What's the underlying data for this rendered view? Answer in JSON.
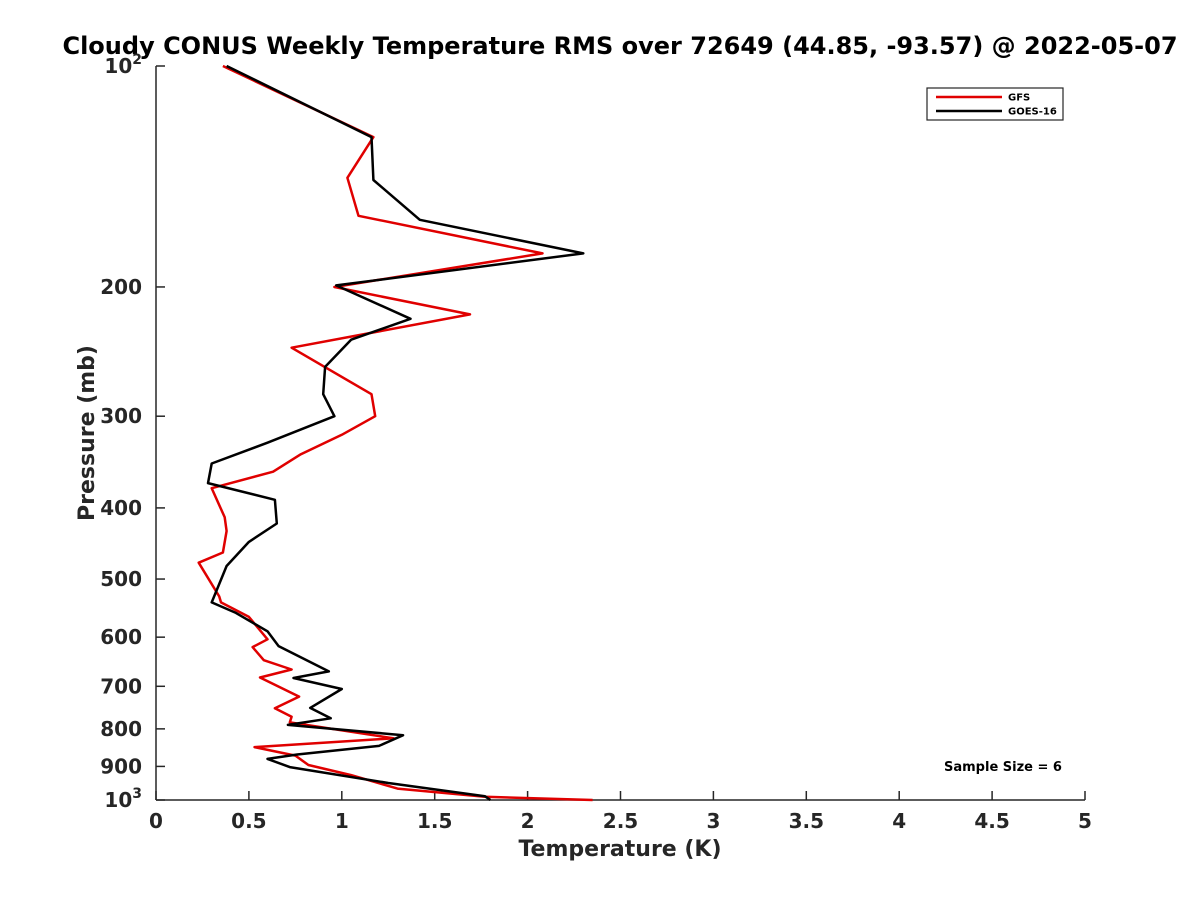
{
  "chart_data": {
    "type": "line",
    "title": "Cloudy CONUS Weekly Temperature RMS over 72649 (44.85, -93.57) @ 2022-05-07",
    "xlabel": "Temperature (K)",
    "ylabel": "Pressure (mb)",
    "xlim": [
      0,
      5
    ],
    "ylim": [
      100,
      1000
    ],
    "y_scale": "log",
    "y_reversed": true,
    "x_ticks": [
      "0",
      "0.5",
      "1",
      "1.5",
      "2",
      "2.5",
      "3",
      "3.5",
      "4",
      "4.5",
      "5"
    ],
    "y_ticks": [
      {
        "value": 100,
        "base": "10",
        "exp": "2"
      },
      {
        "value": 200,
        "label": "200"
      },
      {
        "value": 300,
        "label": "300"
      },
      {
        "value": 400,
        "label": "400"
      },
      {
        "value": 500,
        "label": "500"
      },
      {
        "value": 600,
        "label": "600"
      },
      {
        "value": 700,
        "label": "700"
      },
      {
        "value": 800,
        "label": "800"
      },
      {
        "value": 900,
        "label": "900"
      },
      {
        "value": 1000,
        "base": "10",
        "exp": "3"
      }
    ],
    "grid": false,
    "legend_position": "top-right",
    "annotation": "Sample Size = 6",
    "series": [
      {
        "name": "GFS",
        "color": "#e00000",
        "x": [
          0.36,
          1.17,
          1.03,
          1.09,
          2.08,
          0.96,
          1.69,
          0.73,
          1.16,
          1.18,
          1.0,
          0.78,
          0.63,
          0.3,
          0.37,
          0.38,
          0.36,
          0.23,
          0.34,
          0.35,
          0.5,
          0.6,
          0.52,
          0.58,
          0.73,
          0.56,
          0.77,
          0.64,
          0.73,
          0.72,
          1.28,
          0.53,
          0.75,
          0.82,
          1.05,
          1.3,
          1.77,
          2.35
        ],
        "y": [
          100,
          125,
          142,
          160,
          180,
          200,
          218,
          242,
          280,
          300,
          318,
          338,
          357,
          376,
          412,
          430,
          460,
          475,
          528,
          538,
          563,
          604,
          619,
          645,
          664,
          681,
          723,
          750,
          770,
          784,
          824,
          847,
          870,
          896,
          925,
          965,
          990,
          1000
        ]
      },
      {
        "name": "GOES-16",
        "color": "#000000",
        "x": [
          0.38,
          1.16,
          1.17,
          1.42,
          2.3,
          0.97,
          1.37,
          1.05,
          0.91,
          0.9,
          0.96,
          0.6,
          0.3,
          0.28,
          0.64,
          0.65,
          0.5,
          0.38,
          0.3,
          0.43,
          0.6,
          0.66,
          0.93,
          0.74,
          1.0,
          0.83,
          0.94,
          0.71,
          1.33,
          1.2,
          0.76,
          0.6,
          0.72,
          1.25,
          1.77,
          1.8
        ],
        "y": [
          100,
          125,
          143,
          162,
          180,
          199,
          221,
          236,
          257,
          280,
          300,
          326,
          348,
          370,
          390,
          420,
          445,
          480,
          538,
          556,
          589,
          617,
          668,
          682,
          706,
          749,
          774,
          790,
          816,
          844,
          867,
          879,
          902,
          948,
          988,
          1000
        ]
      }
    ]
  }
}
